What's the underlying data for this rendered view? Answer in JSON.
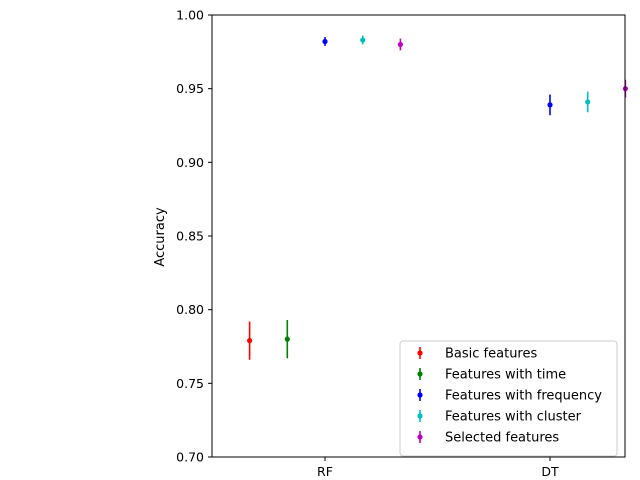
{
  "chart_data": {
    "type": "scatter",
    "title": "",
    "xlabel": "",
    "ylabel": "Accuracy",
    "categories": [
      "RF",
      "DT"
    ],
    "ylim": [
      0.7,
      1.0
    ],
    "yticks": [
      "0.70",
      "0.75",
      "0.80",
      "0.85",
      "0.90",
      "0.95",
      "1.00"
    ],
    "grid": false,
    "legend_position": "lower-right",
    "series": [
      {
        "name": "Basic features",
        "color": "#ff0000",
        "points": [
          {
            "category": "RF",
            "value": 0.779,
            "error": 0.013
          }
        ]
      },
      {
        "name": "Features with time",
        "color": "#008000",
        "points": [
          {
            "category": "RF",
            "value": 0.78,
            "error": 0.013
          }
        ]
      },
      {
        "name": "Features with frequency",
        "color": "#0000ff",
        "points": [
          {
            "category": "RF",
            "value": 0.982,
            "error": 0.003
          },
          {
            "category": "DT",
            "value": 0.939,
            "error": 0.007
          }
        ]
      },
      {
        "name": "Features with cluster",
        "color": "#00bfbf",
        "points": [
          {
            "category": "RF",
            "value": 0.983,
            "error": 0.003
          },
          {
            "category": "DT",
            "value": 0.941,
            "error": 0.007
          }
        ]
      },
      {
        "name": "Selected features",
        "color": "#bf00bf",
        "points": [
          {
            "category": "RF",
            "value": 0.98,
            "error": 0.004
          },
          {
            "category": "DT",
            "value": 0.95,
            "error": 0.006
          }
        ]
      }
    ]
  }
}
